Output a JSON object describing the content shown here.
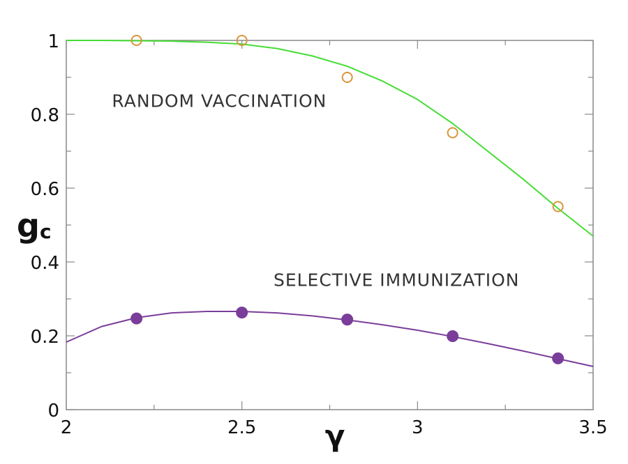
{
  "chart_data": {
    "type": "scatter",
    "title": "",
    "xlabel": "γ",
    "ylabel_main": "g",
    "ylabel_sub": "c",
    "xlim": [
      2,
      3.5
    ],
    "ylim": [
      0,
      1
    ],
    "xticks": [
      {
        "value": 2,
        "label": "2"
      },
      {
        "value": 2.5,
        "label": "2.5"
      },
      {
        "value": 3,
        "label": "3"
      },
      {
        "value": 3.5,
        "label": "3.5"
      }
    ],
    "yticks": [
      {
        "value": 0,
        "label": "0"
      },
      {
        "value": 0.2,
        "label": "0.2"
      },
      {
        "value": 0.4,
        "label": "0.4"
      },
      {
        "value": 0.6,
        "label": "0.6"
      },
      {
        "value": 0.8,
        "label": "0.8"
      },
      {
        "value": 1,
        "label": "1"
      }
    ],
    "grid": false,
    "annotations": [
      {
        "text": "RANDOM VACCINATION",
        "x": 2.13,
        "y": 0.82
      },
      {
        "text": "SELECTIVE IMMUNIZATION",
        "x": 2.59,
        "y": 0.335
      }
    ],
    "series": [
      {
        "kind": "markers",
        "marker": "open-circle",
        "color": "#d9953a",
        "x": [
          2.2,
          2.5,
          2.8,
          3.1,
          3.4
        ],
        "y": [
          1.0,
          1.0,
          0.9,
          0.75,
          0.55
        ]
      },
      {
        "kind": "line",
        "color": "#44dd33",
        "x": [
          2.0,
          2.1,
          2.2,
          2.3,
          2.4,
          2.5,
          2.6,
          2.7,
          2.8,
          2.9,
          3.0,
          3.1,
          3.2,
          3.3,
          3.4,
          3.5
        ],
        "y": [
          1.0,
          1.0,
          0.999,
          0.998,
          0.995,
          0.99,
          0.978,
          0.958,
          0.93,
          0.89,
          0.84,
          0.775,
          0.7,
          0.625,
          0.545,
          0.47
        ]
      },
      {
        "kind": "markers",
        "marker": "filled-circle",
        "color": "#7a3e9a",
        "x": [
          2.2,
          2.5,
          2.8,
          3.1,
          3.4
        ],
        "y": [
          0.247,
          0.263,
          0.244,
          0.199,
          0.139
        ]
      },
      {
        "kind": "line",
        "color": "#7a3e9a",
        "x": [
          2.0,
          2.1,
          2.2,
          2.3,
          2.4,
          2.5,
          2.6,
          2.7,
          2.8,
          2.9,
          3.0,
          3.1,
          3.2,
          3.3,
          3.4,
          3.5
        ],
        "y": [
          0.183,
          0.225,
          0.249,
          0.262,
          0.266,
          0.266,
          0.262,
          0.254,
          0.243,
          0.23,
          0.215,
          0.198,
          0.179,
          0.159,
          0.138,
          0.117
        ]
      }
    ]
  }
}
